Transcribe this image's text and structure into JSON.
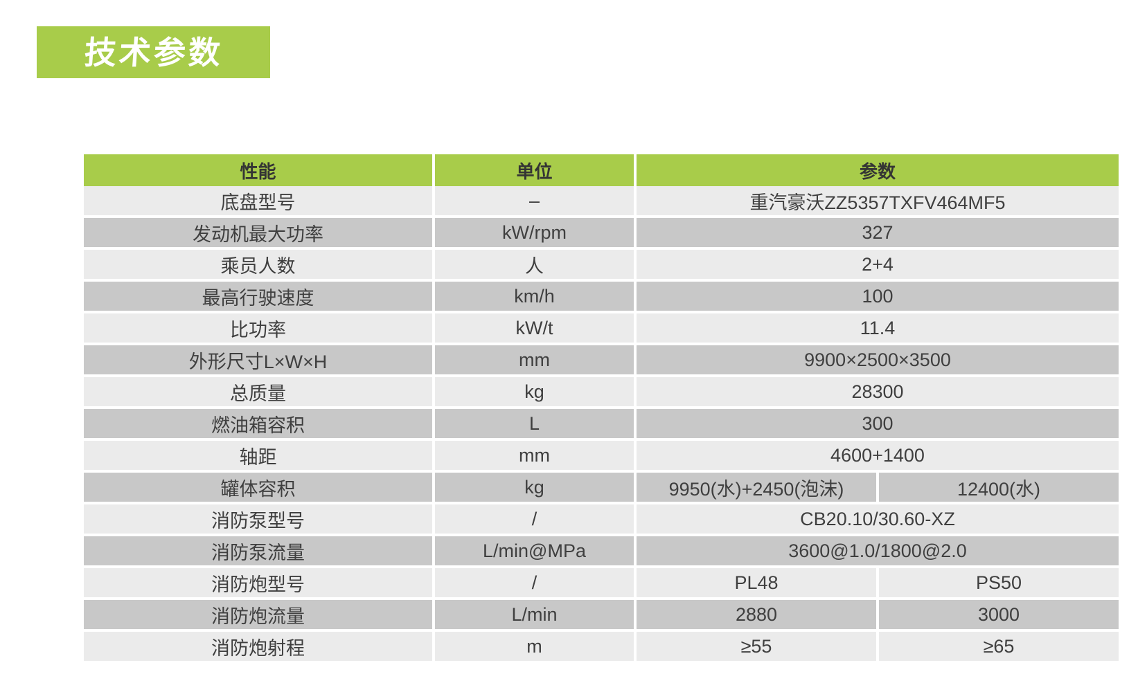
{
  "title": {
    "text": "技术参数",
    "banner_color": "#a8cc4a",
    "text_color": "#ffffff"
  },
  "table": {
    "headers": {
      "performance": "性能",
      "unit": "单位",
      "parameter": "参数"
    },
    "colors": {
      "header_bg": "#a8cc4a",
      "row_light": "#ebebeb",
      "row_dark": "#c8c8c8",
      "text": "#3f3f3f",
      "grid_gap": "#ffffff"
    },
    "rows": [
      {
        "name": "底盘型号",
        "unit": "–",
        "values": [
          "重汽豪沃ZZ5357TXFV464MF5"
        ]
      },
      {
        "name": "发动机最大功率",
        "unit": "kW/rpm",
        "values": [
          "327"
        ]
      },
      {
        "name": "乘员人数",
        "unit": "人",
        "values": [
          "2+4"
        ]
      },
      {
        "name": "最高行驶速度",
        "unit": "km/h",
        "values": [
          "100"
        ]
      },
      {
        "name": "比功率",
        "unit": "kW/t",
        "values": [
          "11.4"
        ]
      },
      {
        "name": "外形尺寸L×W×H",
        "unit": "mm",
        "values": [
          "9900×2500×3500"
        ]
      },
      {
        "name": "总质量",
        "unit": "kg",
        "values": [
          "28300"
        ]
      },
      {
        "name": "燃油箱容积",
        "unit": "L",
        "values": [
          "300"
        ]
      },
      {
        "name": "轴距",
        "unit": "mm",
        "values": [
          "4600+1400"
        ]
      },
      {
        "name": "罐体容积",
        "unit": "kg",
        "values": [
          "9950(水)+2450(泡沫)",
          "12400(水)"
        ]
      },
      {
        "name": "消防泵型号",
        "unit": "/",
        "values": [
          "CB20.10/30.60-XZ"
        ]
      },
      {
        "name": "消防泵流量",
        "unit": "L/min@MPa",
        "values": [
          "3600@1.0/1800@2.0"
        ]
      },
      {
        "name": "消防炮型号",
        "unit": "/",
        "values": [
          "PL48",
          "PS50"
        ]
      },
      {
        "name": "消防炮流量",
        "unit": "L/min",
        "values": [
          "2880",
          "3000"
        ]
      },
      {
        "name": "消防炮射程",
        "unit": "m",
        "values": [
          "≥55",
          "≥65"
        ]
      }
    ]
  }
}
